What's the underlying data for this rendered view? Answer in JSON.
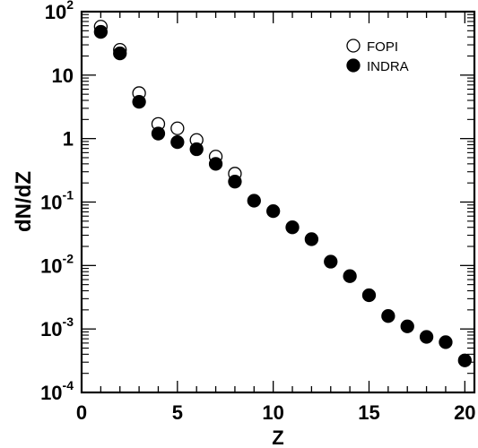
{
  "chart_data": {
    "type": "scatter",
    "xlabel": "Z",
    "ylabel": "dN/dZ",
    "xlim": [
      0,
      20.5
    ],
    "ylim": [
      0.0001,
      100
    ],
    "yscale": "log",
    "grid": false,
    "legend": "top-right",
    "x_ticks": [
      {
        "value": 0,
        "label": "0"
      },
      {
        "value": 5,
        "label": "5"
      },
      {
        "value": 10,
        "label": "10"
      },
      {
        "value": 15,
        "label": "15"
      },
      {
        "value": 20,
        "label": "20"
      }
    ],
    "y_ticks": [
      {
        "value": 100,
        "base": "10",
        "exp": "2"
      },
      {
        "value": 10,
        "base": "10",
        "exp": ""
      },
      {
        "value": 1,
        "base": "1",
        "exp": ""
      },
      {
        "value": 0.1,
        "base": "10",
        "exp": "-1"
      },
      {
        "value": 0.01,
        "base": "10",
        "exp": "-2"
      },
      {
        "value": 0.001,
        "base": "10",
        "exp": "-3"
      },
      {
        "value": 0.0001,
        "base": "10",
        "exp": "-4"
      }
    ],
    "series": [
      {
        "name": "FOPI",
        "marker": "open-circle",
        "color": "#000000",
        "x": [
          1,
          2,
          3,
          4,
          5,
          6,
          7,
          8
        ],
        "y": [
          58,
          25,
          5.2,
          1.7,
          1.45,
          0.95,
          0.52,
          0.28
        ]
      },
      {
        "name": "INDRA",
        "marker": "filled-circle",
        "color": "#000000",
        "x": [
          1,
          2,
          3,
          4,
          5,
          6,
          7,
          8,
          9,
          10,
          11,
          12,
          13,
          14,
          15,
          16,
          17,
          18,
          19,
          20
        ],
        "y": [
          48,
          22,
          3.8,
          1.2,
          0.88,
          0.68,
          0.4,
          0.21,
          0.105,
          0.072,
          0.04,
          0.026,
          0.0115,
          0.0068,
          0.0034,
          0.0016,
          0.0011,
          0.00075,
          0.00062,
          0.00032
        ]
      }
    ]
  }
}
